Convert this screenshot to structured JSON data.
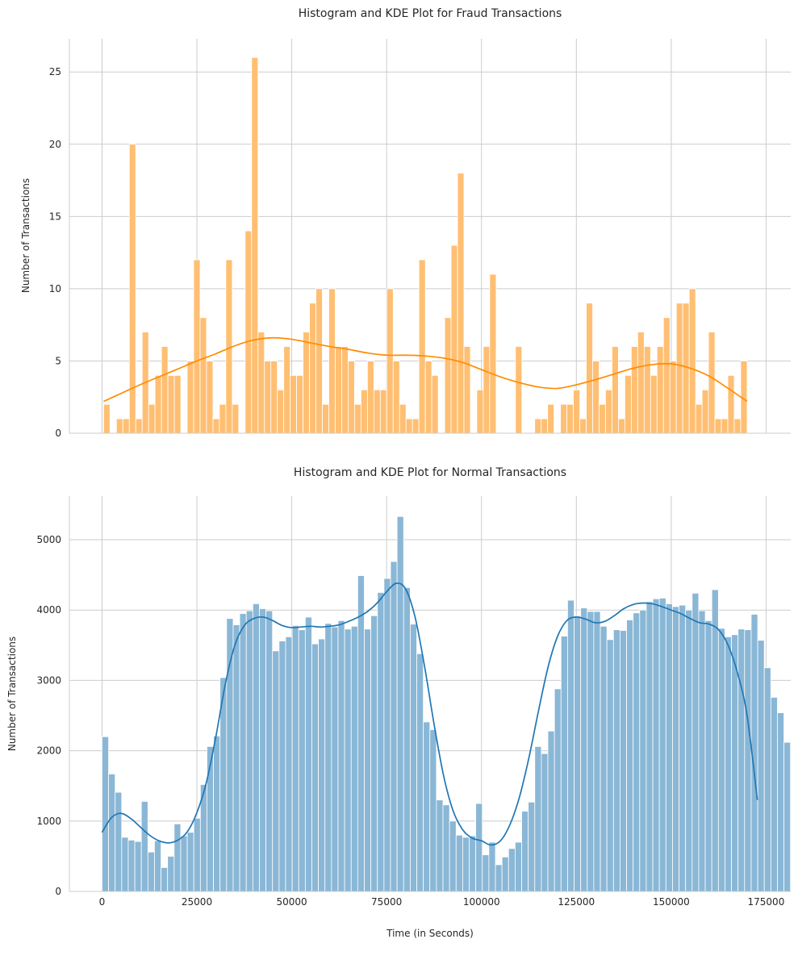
{
  "colors": {
    "fraud_bar": "#ffbf73",
    "fraud_bar_edge": "#ffffff",
    "fraud_kde": "#ff8c00",
    "normal_bar": "#8ab7d6",
    "normal_bar_edge": "#ffffff",
    "normal_kde": "#1f77b4",
    "grid": "#cccccc"
  },
  "chart_data": [
    {
      "type": "bar",
      "title": "Histogram and KDE Plot for Fraud Transactions",
      "xlabel": "",
      "ylabel": "Number of Transactions",
      "xlim": [
        -8600,
        181500
      ],
      "ylim": [
        0,
        27.3
      ],
      "yticks": [
        0,
        5,
        10,
        15,
        20,
        25
      ],
      "ytick_labels": [
        "0",
        "5",
        "10",
        "15",
        "20",
        "25"
      ],
      "xticks": [
        0,
        25000,
        50000,
        75000,
        100000,
        125000,
        150000,
        175000
      ],
      "xtick_labels": [],
      "grid": true,
      "bin_start": 406,
      "bin_width": 1696,
      "values": [
        2,
        0,
        1,
        1,
        20,
        1,
        7,
        2,
        4,
        6,
        4,
        4,
        0,
        5,
        12,
        8,
        5,
        1,
        2,
        12,
        2,
        0,
        14,
        26,
        7,
        5,
        5,
        3,
        6,
        4,
        4,
        7,
        9,
        10,
        2,
        10,
        6,
        6,
        5,
        2,
        3,
        5,
        3,
        3,
        10,
        5,
        2,
        1,
        1,
        12,
        5,
        4,
        0,
        8,
        13,
        18,
        6,
        0,
        3,
        6,
        11,
        0,
        0,
        0,
        6,
        0,
        0,
        1,
        1,
        2,
        0,
        2,
        2,
        3,
        1,
        9,
        5,
        2,
        3,
        6,
        1,
        4,
        6,
        7,
        6,
        4,
        6,
        8,
        5,
        9,
        9,
        10,
        2,
        3,
        7,
        1,
        1,
        4,
        1,
        5
      ],
      "kde": {
        "x": [
          406,
          5000,
          10000,
          15000,
          20000,
          25000,
          30000,
          35000,
          40000,
          45000,
          50000,
          55000,
          60000,
          65000,
          70000,
          75000,
          80000,
          85000,
          90000,
          95000,
          100000,
          105000,
          110000,
          115000,
          120000,
          125000,
          130000,
          135000,
          140000,
          145000,
          150000,
          155000,
          160000,
          165000,
          170000
        ],
        "y": [
          2.2,
          2.75,
          3.35,
          3.9,
          4.45,
          5.0,
          5.5,
          6.05,
          6.45,
          6.6,
          6.5,
          6.25,
          6.0,
          5.8,
          5.55,
          5.4,
          5.4,
          5.35,
          5.2,
          4.9,
          4.4,
          3.9,
          3.5,
          3.2,
          3.1,
          3.35,
          3.7,
          4.1,
          4.5,
          4.75,
          4.8,
          4.5,
          3.95,
          3.1,
          2.2
        ]
      }
    },
    {
      "type": "bar",
      "title": "Histogram and KDE Plot for Normal Transactions",
      "xlabel": "Time (in Seconds)",
      "ylabel": "Number of Transactions",
      "xlim": [
        -8600,
        181500
      ],
      "ylim": [
        0,
        5620
      ],
      "yticks": [
        0,
        1000,
        2000,
        3000,
        4000,
        5000
      ],
      "ytick_labels": [
        "0",
        "1000",
        "2000",
        "3000",
        "4000",
        "5000"
      ],
      "xticks": [
        0,
        25000,
        50000,
        75000,
        100000,
        125000,
        150000,
        175000
      ],
      "xtick_labels": [
        "0",
        "25000",
        "50000",
        "75000",
        "100000",
        "125000",
        "150000",
        "175000"
      ],
      "grid": true,
      "bin_start": 0,
      "bin_width": 1728,
      "values": [
        2200,
        1670,
        1410,
        770,
        730,
        710,
        1280,
        560,
        720,
        340,
        500,
        960,
        790,
        840,
        1040,
        1520,
        2060,
        2210,
        3040,
        3880,
        3790,
        3950,
        3990,
        4090,
        4020,
        3990,
        3420,
        3560,
        3620,
        3780,
        3720,
        3900,
        3520,
        3590,
        3810,
        3760,
        3850,
        3730,
        3770,
        4490,
        3730,
        3920,
        4250,
        4450,
        4690,
        5330,
        4320,
        3800,
        3380,
        2410,
        2300,
        1300,
        1230,
        1000,
        800,
        770,
        790,
        1250,
        520,
        700,
        380,
        490,
        610,
        700,
        1140,
        1270,
        2060,
        1960,
        2280,
        2880,
        3630,
        4140,
        3920,
        4030,
        3980,
        3980,
        3770,
        3580,
        3720,
        3710,
        3860,
        3960,
        4000,
        4120,
        4160,
        4170,
        4090,
        4050,
        4070,
        4000,
        4240,
        3990,
        3850,
        4290,
        3740,
        3620,
        3650,
        3730,
        3720,
        3940,
        3570,
        3180,
        2760,
        2540,
        2120
      ],
      "kde": {
        "x": [
          0,
          2500,
          5000,
          7500,
          10000,
          12500,
          15000,
          17500,
          20000,
          22500,
          25000,
          27500,
          30000,
          32500,
          35000,
          37500,
          40000,
          42500,
          45000,
          47500,
          50000,
          52500,
          55000,
          57500,
          60000,
          62500,
          65000,
          67500,
          70000,
          72500,
          75000,
          77500,
          80000,
          82500,
          85000,
          87500,
          90000,
          92500,
          95000,
          97500,
          100000,
          102500,
          105000,
          107500,
          110000,
          112500,
          115000,
          117500,
          120000,
          122500,
          125000,
          127500,
          130000,
          132500,
          135000,
          137500,
          140000,
          142500,
          145000,
          147500,
          150000,
          152500,
          155000,
          157500,
          160000,
          162500,
          165000,
          167500,
          170000,
          172700
        ],
        "y": [
          840,
          1050,
          1110,
          1040,
          920,
          800,
          720,
          690,
          730,
          850,
          1120,
          1550,
          2200,
          2950,
          3500,
          3780,
          3880,
          3900,
          3850,
          3780,
          3750,
          3760,
          3770,
          3760,
          3770,
          3790,
          3840,
          3900,
          3980,
          4100,
          4260,
          4380,
          4300,
          3900,
          3200,
          2380,
          1650,
          1150,
          880,
          760,
          720,
          660,
          720,
          950,
          1340,
          1900,
          2560,
          3180,
          3620,
          3850,
          3900,
          3870,
          3820,
          3840,
          3920,
          4020,
          4080,
          4100,
          4090,
          4050,
          4000,
          3950,
          3880,
          3820,
          3800,
          3720,
          3500,
          3100,
          2500,
          1300
        ]
      }
    }
  ]
}
